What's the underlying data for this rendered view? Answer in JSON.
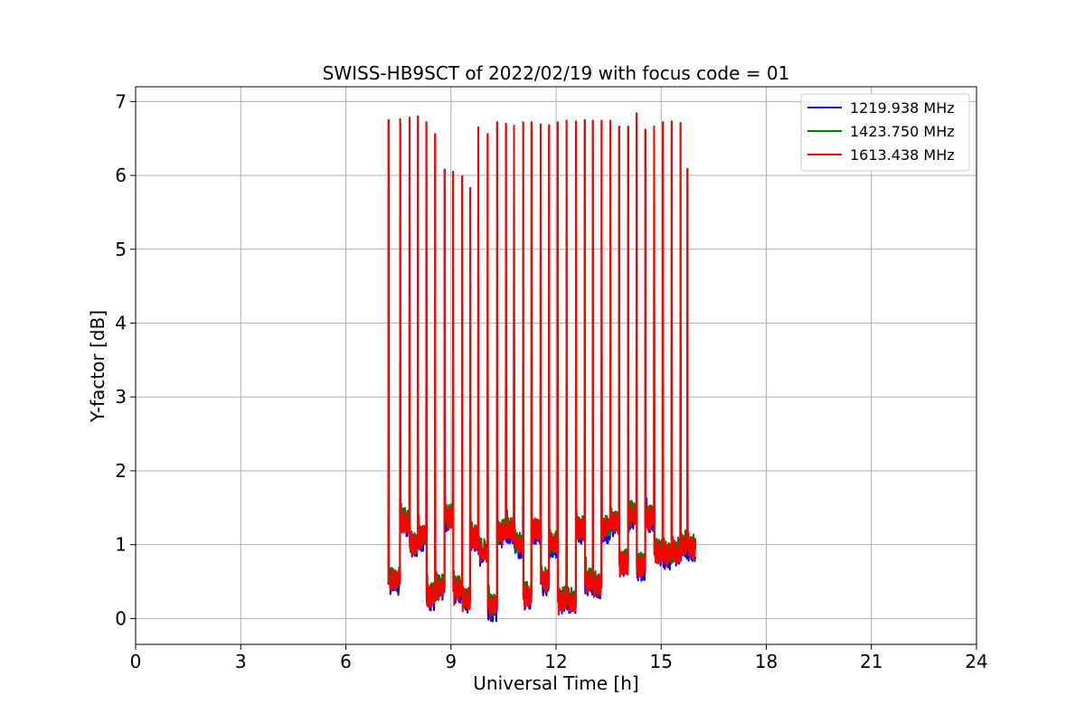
{
  "chart_data": {
    "type": "line",
    "title": "SWISS-HB9SCT of 2022/02/19 with focus code = 01",
    "xlabel": "Universal Time [h]",
    "ylabel": "Y-factor [dB]",
    "xlim": [
      0,
      24
    ],
    "ylim": [
      -0.35,
      7.2
    ],
    "xticks": [
      0,
      3,
      6,
      9,
      12,
      15,
      18,
      21,
      24
    ],
    "yticks": [
      0,
      1,
      2,
      3,
      4,
      5,
      6,
      7
    ],
    "grid": true,
    "legend_position": "top-right",
    "series": [
      {
        "name": "1219.938 MHz",
        "color": "#0000ff",
        "peaks": [
          [
            7.22,
            6.75
          ],
          [
            7.55,
            6.76
          ],
          [
            7.82,
            6.78
          ],
          [
            8.06,
            6.8
          ],
          [
            8.3,
            6.72
          ],
          [
            8.55,
            6.56
          ],
          [
            8.82,
            6.08
          ],
          [
            9.06,
            6.05
          ],
          [
            9.32,
            5.99
          ],
          [
            9.55,
            5.83
          ],
          [
            9.78,
            6.65
          ],
          [
            10.05,
            6.56
          ],
          [
            10.32,
            6.72
          ],
          [
            10.57,
            6.7
          ],
          [
            10.8,
            6.67
          ],
          [
            11.06,
            6.72
          ],
          [
            11.3,
            6.72
          ],
          [
            11.56,
            6.69
          ],
          [
            11.8,
            6.68
          ],
          [
            12.05,
            6.72
          ],
          [
            12.3,
            6.74
          ],
          [
            12.57,
            6.73
          ],
          [
            12.82,
            6.75
          ],
          [
            13.05,
            6.74
          ],
          [
            13.3,
            6.74
          ],
          [
            13.55,
            6.74
          ],
          [
            13.8,
            6.66
          ],
          [
            14.06,
            6.66
          ],
          [
            14.3,
            6.84
          ],
          [
            14.55,
            6.62
          ],
          [
            14.8,
            6.66
          ],
          [
            15.05,
            6.72
          ],
          [
            15.3,
            6.73
          ],
          [
            15.55,
            6.71
          ],
          [
            15.75,
            6.09
          ]
        ],
        "gap_levels": [
          0.5,
          1.3,
          1.0,
          1.1,
          0.3,
          0.4,
          1.35,
          0.4,
          0.25,
          1.1,
          0.9,
          0.15,
          1.15,
          1.2,
          1.0,
          0.3,
          1.2,
          0.5,
          1.0,
          0.25,
          0.25,
          1.2,
          0.5,
          0.45,
          1.2,
          1.3,
          0.75,
          1.4,
          0.7,
          1.35,
          0.9,
          0.85,
          0.9,
          1.0
        ]
      },
      {
        "name": "1423.750 MHz",
        "color": "#008000",
        "peaks": [
          [
            7.22,
            6.75
          ],
          [
            7.55,
            6.76
          ],
          [
            7.82,
            6.78
          ],
          [
            8.06,
            6.8
          ],
          [
            8.3,
            6.72
          ],
          [
            8.55,
            6.56
          ],
          [
            8.82,
            6.08
          ],
          [
            9.06,
            6.05
          ],
          [
            9.32,
            5.99
          ],
          [
            9.55,
            5.83
          ],
          [
            9.78,
            6.65
          ],
          [
            10.05,
            6.56
          ],
          [
            10.32,
            6.72
          ],
          [
            10.57,
            6.7
          ],
          [
            10.8,
            6.67
          ],
          [
            11.06,
            6.72
          ],
          [
            11.3,
            6.72
          ],
          [
            11.56,
            6.69
          ],
          [
            11.8,
            6.68
          ],
          [
            12.05,
            6.72
          ],
          [
            12.3,
            6.74
          ],
          [
            12.57,
            6.73
          ],
          [
            12.82,
            6.75
          ],
          [
            13.05,
            6.74
          ],
          [
            13.3,
            6.74
          ],
          [
            13.55,
            6.74
          ],
          [
            13.8,
            6.66
          ],
          [
            14.06,
            6.66
          ],
          [
            14.3,
            6.84
          ],
          [
            14.55,
            6.62
          ],
          [
            14.8,
            6.66
          ],
          [
            15.05,
            6.72
          ],
          [
            15.3,
            6.73
          ],
          [
            15.55,
            6.71
          ],
          [
            15.75,
            6.09
          ]
        ],
        "gap_levels": [
          0.5,
          1.3,
          1.0,
          1.1,
          0.3,
          0.4,
          1.35,
          0.4,
          0.25,
          1.1,
          0.9,
          0.15,
          1.15,
          1.2,
          1.0,
          0.3,
          1.2,
          0.5,
          1.0,
          0.25,
          0.25,
          1.2,
          0.5,
          0.45,
          1.2,
          1.3,
          0.75,
          1.4,
          0.7,
          1.35,
          0.9,
          0.85,
          0.9,
          1.0
        ]
      },
      {
        "name": "1613.438 MHz",
        "color": "#ff0000",
        "peaks": [
          [
            7.22,
            6.75
          ],
          [
            7.55,
            6.76
          ],
          [
            7.82,
            6.78
          ],
          [
            8.06,
            6.8
          ],
          [
            8.3,
            6.72
          ],
          [
            8.55,
            6.56
          ],
          [
            8.82,
            6.08
          ],
          [
            9.06,
            6.05
          ],
          [
            9.32,
            5.99
          ],
          [
            9.55,
            5.83
          ],
          [
            9.78,
            6.65
          ],
          [
            10.05,
            6.56
          ],
          [
            10.32,
            6.72
          ],
          [
            10.57,
            6.7
          ],
          [
            10.8,
            6.67
          ],
          [
            11.06,
            6.72
          ],
          [
            11.3,
            6.72
          ],
          [
            11.56,
            6.69
          ],
          [
            11.8,
            6.68
          ],
          [
            12.05,
            6.72
          ],
          [
            12.3,
            6.74
          ],
          [
            12.57,
            6.73
          ],
          [
            12.82,
            6.75
          ],
          [
            13.05,
            6.74
          ],
          [
            13.3,
            6.74
          ],
          [
            13.55,
            6.74
          ],
          [
            13.8,
            6.66
          ],
          [
            14.06,
            6.66
          ],
          [
            14.3,
            6.84
          ],
          [
            14.55,
            6.62
          ],
          [
            14.8,
            6.66
          ],
          [
            15.05,
            6.72
          ],
          [
            15.3,
            6.73
          ],
          [
            15.55,
            6.71
          ],
          [
            15.75,
            6.09
          ]
        ],
        "gap_levels": [
          0.5,
          1.3,
          1.0,
          1.1,
          0.3,
          0.4,
          1.35,
          0.4,
          0.25,
          1.1,
          0.9,
          0.15,
          1.15,
          1.2,
          1.0,
          0.3,
          1.2,
          0.5,
          1.0,
          0.25,
          0.25,
          1.2,
          0.5,
          0.45,
          1.2,
          1.3,
          0.75,
          1.4,
          0.7,
          1.35,
          0.9,
          0.85,
          0.9,
          1.0
        ]
      }
    ]
  }
}
